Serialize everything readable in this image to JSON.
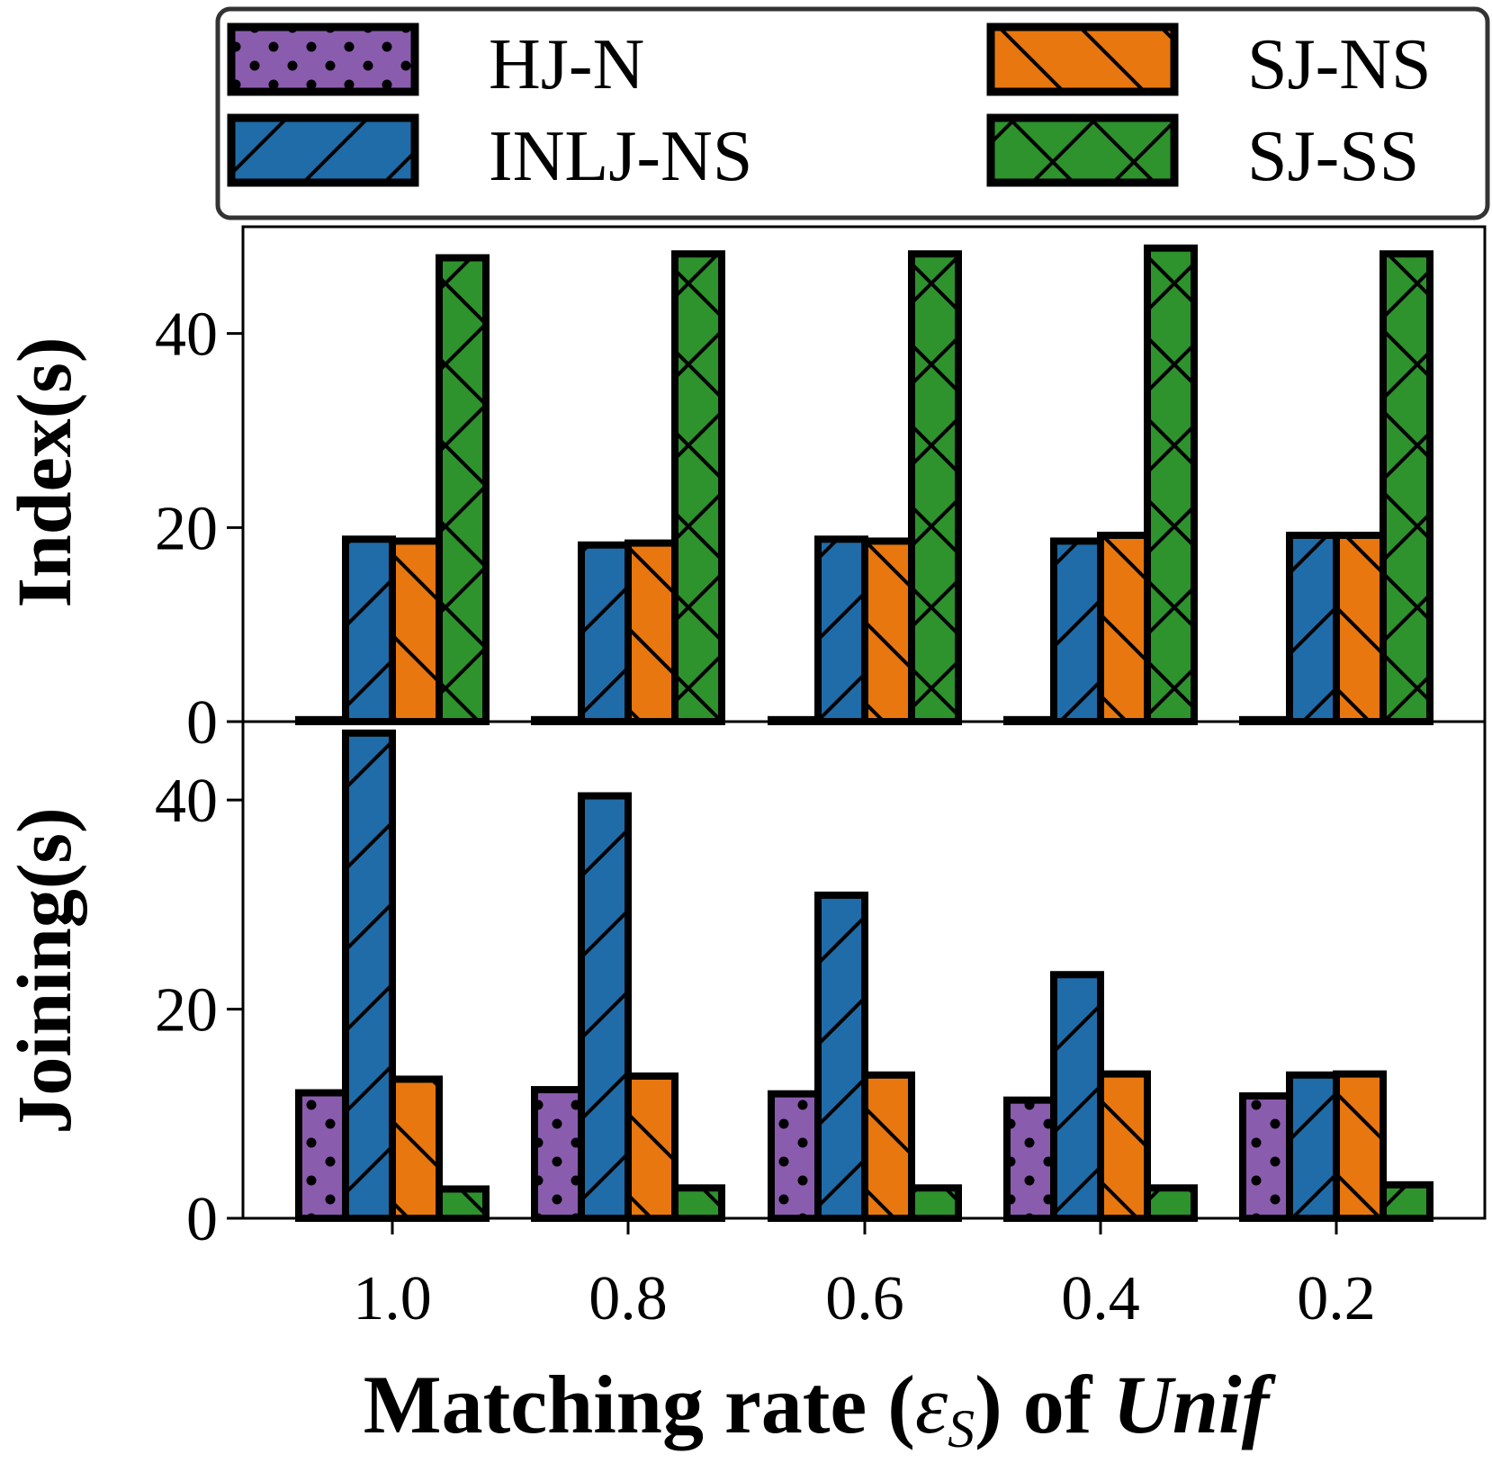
{
  "colors": {
    "HJ-N": "#8a5cae",
    "INLJ-NS": "#1f6ca8",
    "SJ-NS": "#e8770f",
    "SJ-SS": "#2e922d",
    "outline": "#000000"
  },
  "chart_data": {
    "type": "bar",
    "categories": [
      "1.0",
      "0.8",
      "0.6",
      "0.4",
      "0.2"
    ],
    "legend": [
      "HJ-N",
      "INLJ-NS",
      "SJ-NS",
      "SJ-SS"
    ],
    "legend_position": "top",
    "xlabel": {
      "prefix": "Matching rate (",
      "symbol": "ε",
      "subscript": "S",
      "middle": ") of ",
      "dataset": "Unif"
    },
    "panels": [
      {
        "ylabel": "Index(s)",
        "ylim": [
          0,
          51
        ],
        "yticks": [
          "0",
          "20",
          "40"
        ],
        "series": [
          {
            "name": "HJ-N",
            "values": [
              0.2,
              0.2,
              0.2,
              0.2,
              0.2
            ]
          },
          {
            "name": "INLJ-NS",
            "values": [
              18.8,
              18.2,
              18.8,
              18.6,
              19.2
            ]
          },
          {
            "name": "SJ-NS",
            "values": [
              18.6,
              18.4,
              18.6,
              19.2,
              19.2
            ]
          },
          {
            "name": "SJ-SS",
            "values": [
              47.8,
              48.2,
              48.2,
              48.8,
              48.2
            ]
          }
        ]
      },
      {
        "ylabel": "Joining(s)",
        "ylim": [
          0,
          47.5
        ],
        "yticks": [
          "0",
          "20",
          "40"
        ],
        "series": [
          {
            "name": "HJ-N",
            "values": [
              12.0,
              12.3,
              11.9,
              11.3,
              11.7
            ]
          },
          {
            "name": "INLJ-NS",
            "values": [
              46.4,
              40.4,
              30.9,
              23.3,
              13.7
            ]
          },
          {
            "name": "SJ-NS",
            "values": [
              13.3,
              13.6,
              13.7,
              13.8,
              13.8
            ]
          },
          {
            "name": "SJ-SS",
            "values": [
              2.8,
              2.9,
              2.9,
              2.9,
              3.2
            ]
          }
        ]
      }
    ]
  }
}
